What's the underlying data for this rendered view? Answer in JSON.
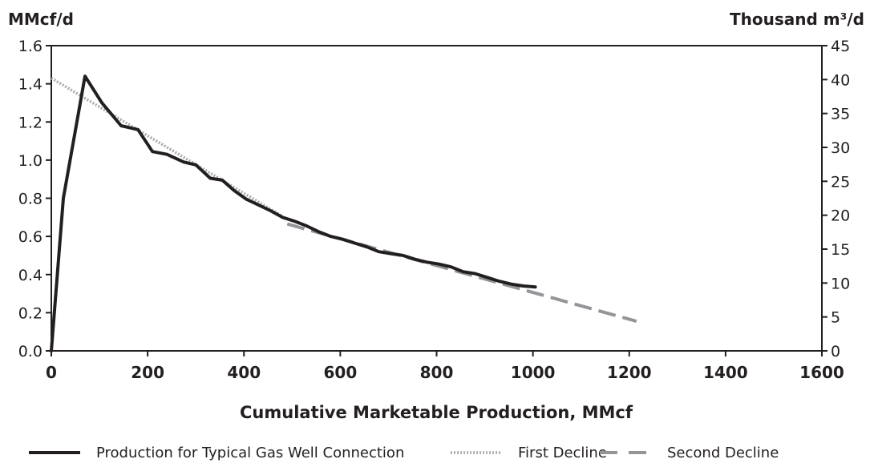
{
  "chart_data": {
    "type": "line",
    "title": "",
    "xlabel": "Cumulative Marketable Production, MMcf",
    "ylabel_left": "MMcf/d",
    "ylabel_right": "Thousand m³/d",
    "xlim": [
      0,
      1600
    ],
    "ylim": [
      0,
      1.6
    ],
    "ylim_right": [
      0,
      45
    ],
    "x_ticks": [
      "0",
      "200",
      "400",
      "600",
      "800",
      "1000",
      "1200",
      "1400",
      "1600"
    ],
    "y_ticks_left": [
      "0.0",
      "0.2",
      "0.4",
      "0.6",
      "0.8",
      "1.0",
      "1.2",
      "1.4",
      "1.6"
    ],
    "y_ticks_right": [
      "0",
      "5",
      "10",
      "15",
      "20",
      "25",
      "30",
      "35",
      "40",
      "45"
    ],
    "grid": false,
    "legend_position": "bottom",
    "series": [
      {
        "name": "Production for Typical Gas Well Connection",
        "style": "solid",
        "color": "#231f20",
        "x": [
          0,
          25,
          70,
          105,
          145,
          180,
          210,
          240,
          275,
          300,
          330,
          355,
          380,
          405,
          430,
          455,
          480,
          505,
          530,
          555,
          580,
          605,
          630,
          655,
          680,
          705,
          730,
          755,
          780,
          805,
          830,
          855,
          880,
          905,
          930,
          955,
          980,
          1005
        ],
        "y": [
          0.0,
          0.8,
          1.44,
          1.3,
          1.18,
          1.16,
          1.045,
          1.03,
          0.99,
          0.975,
          0.905,
          0.895,
          0.84,
          0.795,
          0.765,
          0.735,
          0.7,
          0.68,
          0.655,
          0.625,
          0.6,
          0.585,
          0.565,
          0.545,
          0.52,
          0.51,
          0.5,
          0.48,
          0.465,
          0.455,
          0.44,
          0.415,
          0.405,
          0.385,
          0.365,
          0.35,
          0.34,
          0.335
        ]
      },
      {
        "name": "First Decline",
        "style": "dotted",
        "color": "#a7a9ac",
        "x": [
          0,
          480
        ],
        "y": [
          1.43,
          0.705
        ]
      },
      {
        "name": "Second Decline",
        "style": "dashed",
        "color": "#939598",
        "x": [
          490,
          1215
        ],
        "y": [
          0.665,
          0.155
        ]
      }
    ]
  }
}
